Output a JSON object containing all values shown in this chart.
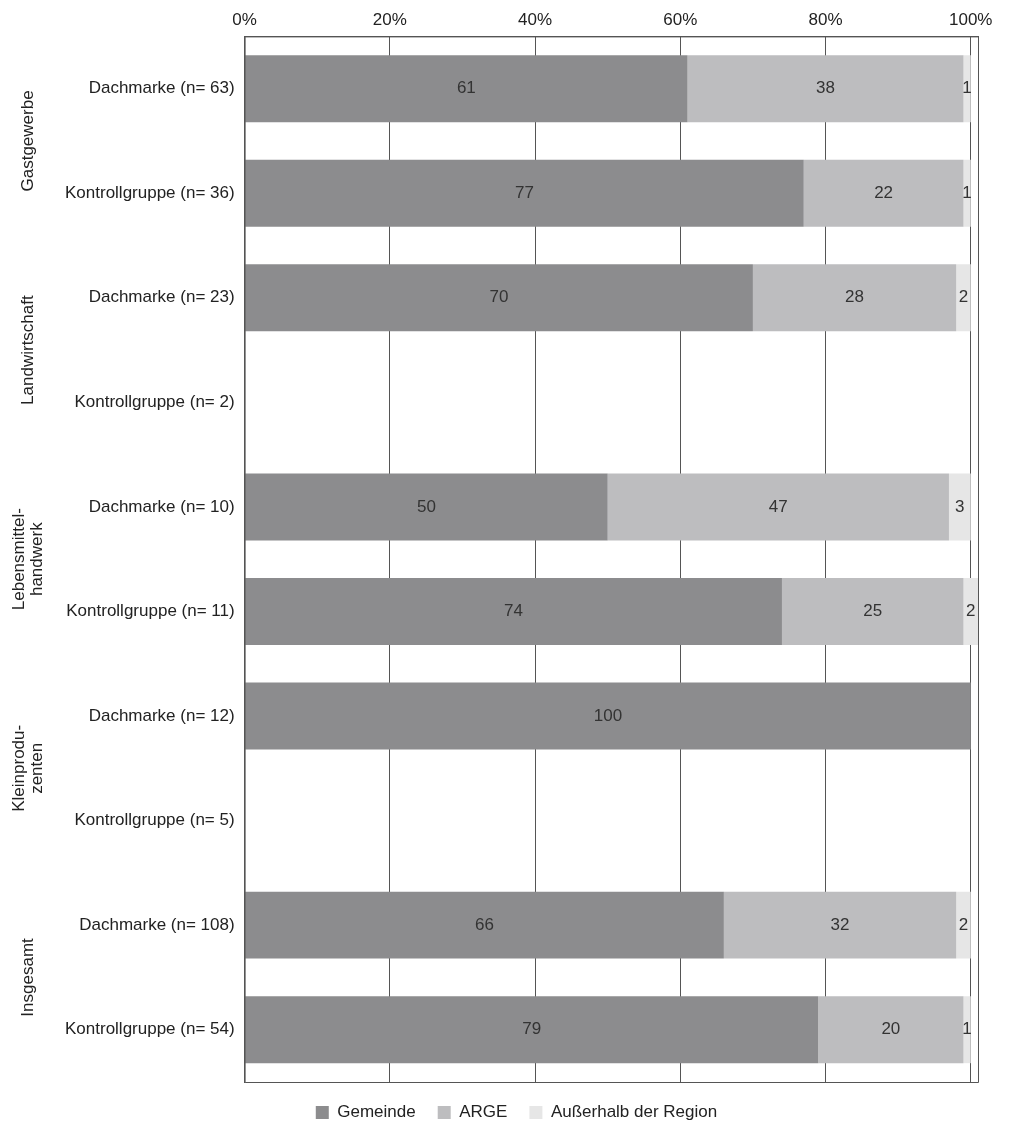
{
  "chart_data": {
    "type": "bar",
    "orientation": "horizontal",
    "stacked": true,
    "categories": [
      "Dachmarke (n= 63)",
      "Kontrollgruppe (n= 36)",
      "Dachmarke (n= 23)",
      "Kontrollgruppe (n= 2)",
      "Dachmarke (n= 10)",
      "Kontrollgruppe (n= 11)",
      "Dachmarke (n= 12)",
      "Kontrollgruppe (n= 5)",
      "Dachmarke (n= 108)",
      "Kontrollgruppe (n= 54)"
    ],
    "series": [
      {
        "name": "Gemeinde",
        "color": "#8c8c8e",
        "values": [
          61,
          77,
          70,
          null,
          50,
          74,
          100,
          null,
          66,
          79
        ]
      },
      {
        "name": "ARGE",
        "color": "#bdbdbf",
        "values": [
          38,
          22,
          28,
          null,
          47,
          25,
          null,
          null,
          32,
          20
        ]
      },
      {
        "name": "Außerhalb der Region",
        "color": "#e6e6e6",
        "values": [
          1,
          1,
          2,
          null,
          3,
          2,
          null,
          null,
          2,
          1
        ]
      }
    ],
    "xlim": [
      0,
      101
    ],
    "xticks": [
      {
        "value": 0,
        "label": "0%"
      },
      {
        "value": 20,
        "label": "20%"
      },
      {
        "value": 40,
        "label": "40%"
      },
      {
        "value": 60,
        "label": "60%"
      },
      {
        "value": 80,
        "label": "80%"
      },
      {
        "value": 100,
        "label": "100%"
      }
    ],
    "annotations": [
      "Gastgewerbe",
      "Landwirtschaft",
      "Lebensmittel-\nhandwerk",
      "Kleinprodu-\nzenten",
      "Insgesamt"
    ],
    "data_labels": true,
    "grid": "x",
    "legend": "bottom"
  }
}
